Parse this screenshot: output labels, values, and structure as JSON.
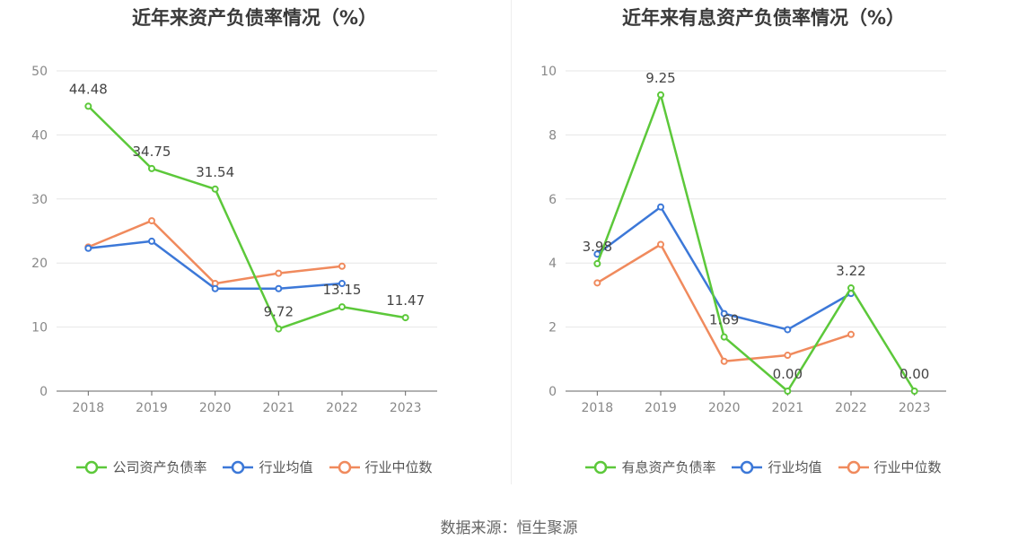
{
  "chart_data": [
    {
      "type": "line",
      "title": "近年来资产负债率情况（%）",
      "categories": [
        "2018",
        "2019",
        "2020",
        "2021",
        "2022",
        "2023"
      ],
      "ylim": [
        0,
        50
      ],
      "yticks": [
        0,
        10,
        20,
        30,
        40,
        50
      ],
      "grid": true,
      "legend_position": "bottom",
      "series": [
        {
          "name": "公司资产负债率",
          "color": "#5cc83a",
          "values": [
            44.48,
            34.75,
            31.54,
            9.72,
            13.15,
            11.47
          ],
          "labels": [
            "44.48",
            "34.75",
            "31.54",
            "9.72",
            "13.15",
            "11.47"
          ]
        },
        {
          "name": "行业均值",
          "color": "#3c78d8",
          "values": [
            22.3,
            23.4,
            16.0,
            16.0,
            16.8,
            null
          ],
          "labels": null
        },
        {
          "name": "行业中位数",
          "color": "#f08a5d",
          "values": [
            22.5,
            26.6,
            16.8,
            18.4,
            19.5,
            null
          ],
          "labels": null
        }
      ]
    },
    {
      "type": "line",
      "title": "近年来有息资产负债率情况（%）",
      "categories": [
        "2018",
        "2019",
        "2020",
        "2021",
        "2022",
        "2023"
      ],
      "ylim": [
        0,
        10
      ],
      "yticks": [
        0,
        2,
        4,
        6,
        8,
        10
      ],
      "grid": true,
      "legend_position": "bottom",
      "series": [
        {
          "name": "有息资产负债率",
          "color": "#5cc83a",
          "values": [
            3.98,
            9.25,
            1.69,
            0.0,
            3.22,
            0.0
          ],
          "labels": [
            "3.98",
            "9.25",
            "1.69",
            "0.00",
            "3.22",
            "0.00"
          ]
        },
        {
          "name": "行业均值",
          "color": "#3c78d8",
          "values": [
            4.28,
            5.75,
            2.42,
            1.92,
            3.05,
            null
          ],
          "labels": null
        },
        {
          "name": "行业中位数",
          "color": "#f08a5d",
          "values": [
            3.38,
            4.58,
            0.93,
            1.12,
            1.77,
            null
          ],
          "labels": null
        }
      ]
    }
  ],
  "footer": {
    "source": "数据来源：恒生聚源"
  }
}
